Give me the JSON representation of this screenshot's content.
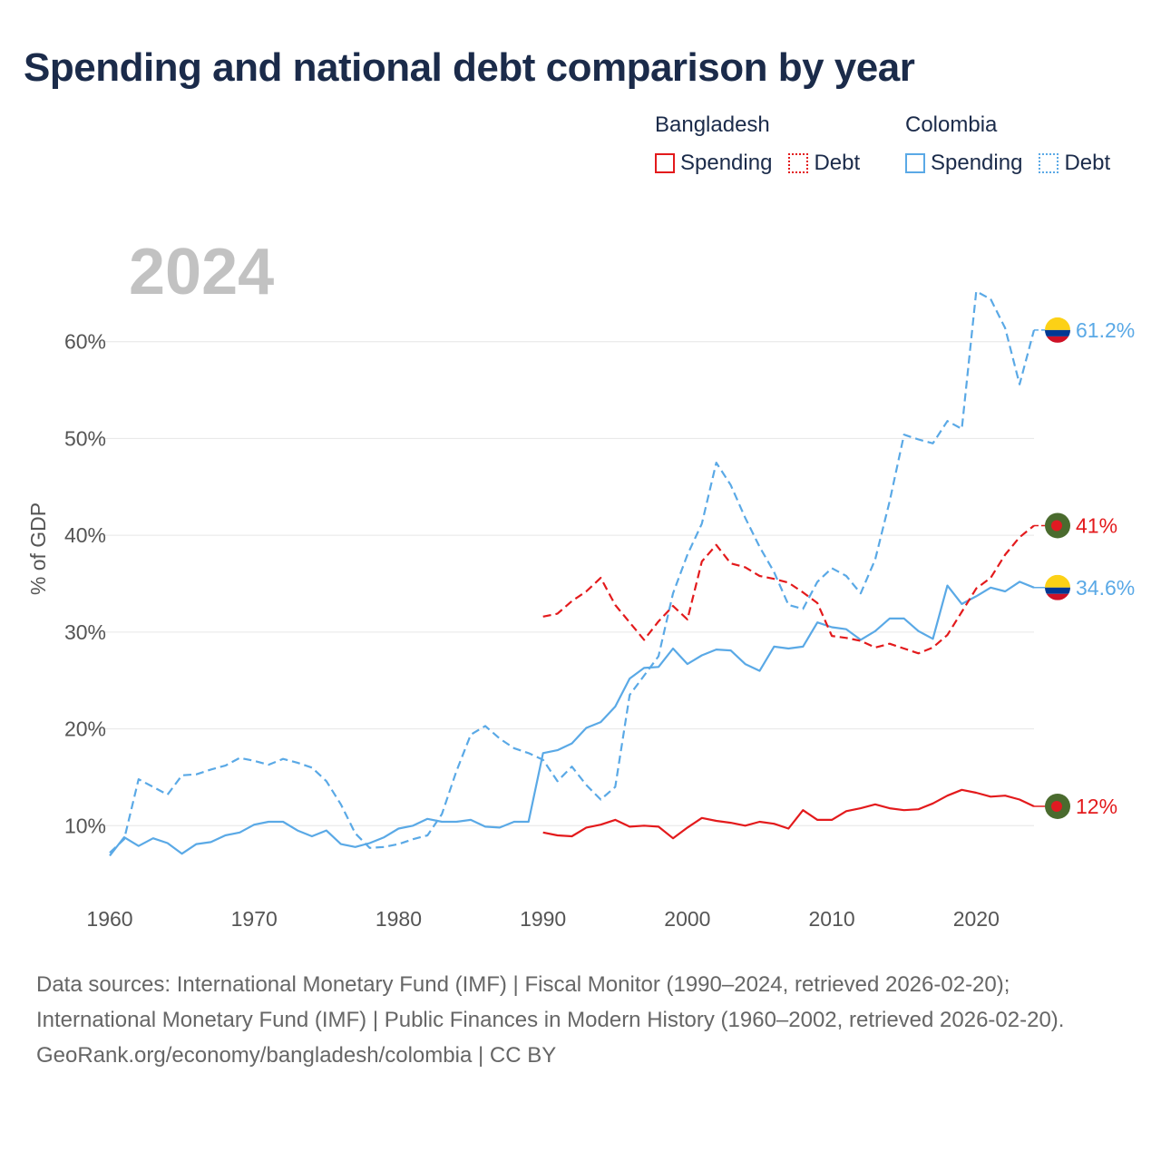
{
  "title": "Spending and national debt comparison by year",
  "legend": {
    "groups": [
      {
        "country": "Bangladesh",
        "color": "#e31a1c",
        "items": [
          "Spending",
          "Debt"
        ]
      },
      {
        "country": "Colombia",
        "color": "#5aa9e6",
        "items": [
          "Spending",
          "Debt"
        ]
      }
    ]
  },
  "footer": {
    "sources": "Data sources: International Monetary Fund (IMF) | Fiscal Monitor (1990–2024, retrieved 2026-02-20); International Monetary Fund (IMF) | Public Finances in Modern History (1960–2002, retrieved 2026-02-20).",
    "credit": "GeoRank.org/economy/bangladesh/colombia | CC BY"
  },
  "chart_data": {
    "type": "line",
    "watermark_year": "2024",
    "ylabel": "% of GDP",
    "xlabel": "",
    "xlim": [
      1960,
      2024
    ],
    "ylim": [
      3,
      70
    ],
    "x_ticks": [
      1960,
      1970,
      1980,
      1990,
      2000,
      2010,
      2020
    ],
    "x_tick_labels": [
      "1960",
      "1970",
      "1980",
      "1990",
      "2000",
      "2010",
      "2020"
    ],
    "y_ticks": [
      10,
      20,
      30,
      40,
      50,
      60
    ],
    "y_tick_labels": [
      "10%",
      "20%",
      "30%",
      "40%",
      "50%",
      "60%"
    ],
    "series": [
      {
        "name": "Colombia Debt",
        "country": "Colombia",
        "metric": "Debt",
        "dash": "dashed",
        "color": "#5aa9e6",
        "flag": "colombia",
        "end_label": "61.2%",
        "x": [
          1960,
          1961,
          1962,
          1963,
          1964,
          1965,
          1966,
          1967,
          1968,
          1969,
          1970,
          1971,
          1972,
          1973,
          1974,
          1975,
          1976,
          1977,
          1978,
          1979,
          1980,
          1981,
          1982,
          1983,
          1984,
          1985,
          1986,
          1987,
          1988,
          1989,
          1990,
          1991,
          1992,
          1993,
          1994,
          1995,
          1996,
          1997,
          1998,
          1999,
          2000,
          2001,
          2002,
          2003,
          2004,
          2005,
          2006,
          2007,
          2008,
          2009,
          2010,
          2011,
          2012,
          2013,
          2014,
          2015,
          2016,
          2017,
          2018,
          2019,
          2020,
          2021,
          2022,
          2023,
          2024
        ],
        "values": [
          7.2,
          8.6,
          14.8,
          14.0,
          13.2,
          15.2,
          15.3,
          15.8,
          16.2,
          17.0,
          16.7,
          16.3,
          16.9,
          16.5,
          16.0,
          14.6,
          12.2,
          9.2,
          7.7,
          7.8,
          8.1,
          8.6,
          9.0,
          11.2,
          15.6,
          19.4,
          20.3,
          19.0,
          18.0,
          17.5,
          16.8,
          14.6,
          16.1,
          14.2,
          12.7,
          14.0,
          23.5,
          25.5,
          27.5,
          34.0,
          38.0,
          41.2,
          47.5,
          45.2,
          41.8,
          38.8,
          36.2,
          32.8,
          32.4,
          35.2,
          36.6,
          35.8,
          34.0,
          37.5,
          43.5,
          50.4,
          49.9,
          49.5,
          51.8,
          51.0,
          65.2,
          64.4,
          61.4,
          55.6,
          61.2
        ]
      },
      {
        "name": "Colombia Spending",
        "country": "Colombia",
        "metric": "Spending",
        "dash": "solid",
        "color": "#5aa9e6",
        "flag": "colombia",
        "end_label": "34.6%",
        "x": [
          1960,
          1961,
          1962,
          1963,
          1964,
          1965,
          1966,
          1967,
          1968,
          1969,
          1970,
          1971,
          1972,
          1973,
          1974,
          1975,
          1976,
          1977,
          1978,
          1979,
          1980,
          1981,
          1982,
          1983,
          1984,
          1985,
          1986,
          1987,
          1988,
          1989,
          1990,
          1991,
          1992,
          1993,
          1994,
          1995,
          1996,
          1997,
          1998,
          1999,
          2000,
          2001,
          2002,
          2003,
          2004,
          2005,
          2006,
          2007,
          2008,
          2009,
          2010,
          2011,
          2012,
          2013,
          2014,
          2015,
          2016,
          2017,
          2018,
          2019,
          2020,
          2021,
          2022,
          2023,
          2024
        ],
        "values": [
          6.9,
          8.8,
          7.9,
          8.7,
          8.2,
          7.1,
          8.1,
          8.3,
          9.0,
          9.3,
          10.1,
          10.4,
          10.4,
          9.5,
          8.9,
          9.5,
          8.1,
          7.8,
          8.2,
          8.8,
          9.7,
          10.0,
          10.7,
          10.4,
          10.4,
          10.6,
          9.9,
          9.8,
          10.4,
          10.4,
          17.5,
          17.8,
          18.5,
          20.1,
          20.7,
          22.3,
          25.2,
          26.3,
          26.4,
          28.3,
          26.7,
          27.6,
          28.2,
          28.1,
          26.7,
          26.0,
          28.5,
          28.3,
          28.5,
          31.0,
          30.5,
          30.3,
          29.2,
          30.1,
          31.4,
          31.4,
          30.1,
          29.3,
          34.8,
          32.9,
          33.7,
          34.6,
          34.2,
          35.2,
          34.6
        ]
      },
      {
        "name": "Bangladesh Debt",
        "country": "Bangladesh",
        "metric": "Debt",
        "dash": "dashed",
        "color": "#e31a1c",
        "flag": "bangladesh",
        "end_label": "41%",
        "x": [
          1990,
          1991,
          1992,
          1993,
          1994,
          1995,
          1996,
          1997,
          1998,
          1999,
          2000,
          2001,
          2002,
          2003,
          2004,
          2005,
          2006,
          2007,
          2008,
          2009,
          2010,
          2011,
          2012,
          2013,
          2014,
          2015,
          2016,
          2017,
          2018,
          2019,
          2020,
          2021,
          2022,
          2023,
          2024
        ],
        "values": [
          31.6,
          31.9,
          33.2,
          34.2,
          35.6,
          32.8,
          31.0,
          29.2,
          31.1,
          32.7,
          31.3,
          37.3,
          39.0,
          37.1,
          36.7,
          35.8,
          35.5,
          35.1,
          34.1,
          33.0,
          29.6,
          29.4,
          29.1,
          28.4,
          28.8,
          28.3,
          27.8,
          28.4,
          29.7,
          32.1,
          34.5,
          35.6,
          38.0,
          39.8,
          41.0
        ]
      },
      {
        "name": "Bangladesh Spending",
        "country": "Bangladesh",
        "metric": "Spending",
        "dash": "solid",
        "color": "#e31a1c",
        "flag": "bangladesh",
        "end_label": "12%",
        "x": [
          1990,
          1991,
          1992,
          1993,
          1994,
          1995,
          1996,
          1997,
          1998,
          1999,
          2000,
          2001,
          2002,
          2003,
          2004,
          2005,
          2006,
          2007,
          2008,
          2009,
          2010,
          2011,
          2012,
          2013,
          2014,
          2015,
          2016,
          2017,
          2018,
          2019,
          2020,
          2021,
          2022,
          2023,
          2024
        ],
        "values": [
          9.3,
          9.0,
          8.9,
          9.8,
          10.1,
          10.6,
          9.9,
          10.0,
          9.9,
          8.7,
          9.8,
          10.8,
          10.5,
          10.3,
          10.0,
          10.4,
          10.2,
          9.7,
          11.6,
          10.6,
          10.6,
          11.5,
          11.8,
          12.2,
          11.8,
          11.6,
          11.7,
          12.3,
          13.1,
          13.7,
          13.4,
          13.0,
          13.1,
          12.7,
          12.0
        ]
      }
    ]
  }
}
